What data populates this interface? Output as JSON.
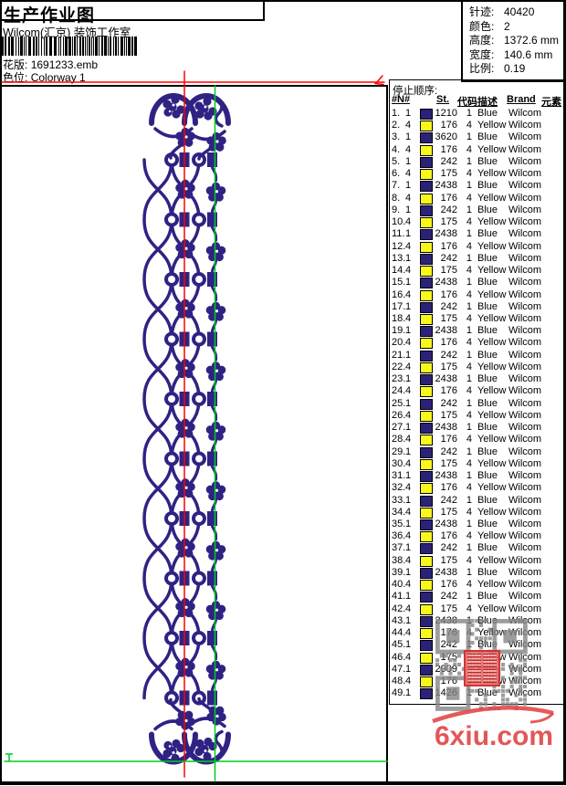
{
  "page": {
    "background": "#ffffff",
    "border_color": "#000000"
  },
  "header": {
    "title": "生产作业图",
    "company": "Wilcom(汇京) 装饰工作室",
    "pattern_label": "花版:",
    "pattern_value": "1691233.emb",
    "colorway_label": "色位:",
    "colorway_value": "Colorway 1"
  },
  "info": {
    "rows": [
      {
        "label": "针迹:",
        "value": "40420"
      },
      {
        "label": "颜色:",
        "value": "2"
      },
      {
        "label": "高度:",
        "value": "1372.6 mm"
      },
      {
        "label": "宽度:",
        "value": "140.6 mm"
      },
      {
        "label": "比例:",
        "value": "0.19"
      }
    ]
  },
  "stop_table": {
    "title": "停止顺序:",
    "columns": [
      "#",
      "N#",
      "St.",
      "代码",
      "描述",
      "Brand",
      "元素"
    ],
    "swatch_colors": {
      "blue": "#2b2277",
      "yellow": "#f7f71e"
    },
    "rows": [
      [
        "1.",
        "1",
        "blue",
        "1210",
        "1",
        "Blue",
        "Wilcom"
      ],
      [
        "2.",
        "4",
        "yellow",
        "176",
        "4",
        "Yellow",
        "Wilcom"
      ],
      [
        "3.",
        "1",
        "blue",
        "3620",
        "1",
        "Blue",
        "Wilcom"
      ],
      [
        "4.",
        "4",
        "yellow",
        "176",
        "4",
        "Yellow",
        "Wilcom"
      ],
      [
        "5.",
        "1",
        "blue",
        "242",
        "1",
        "Blue",
        "Wilcom"
      ],
      [
        "6.",
        "4",
        "yellow",
        "175",
        "4",
        "Yellow",
        "Wilcom"
      ],
      [
        "7.",
        "1",
        "blue",
        "2438",
        "1",
        "Blue",
        "Wilcom"
      ],
      [
        "8.",
        "4",
        "yellow",
        "176",
        "4",
        "Yellow",
        "Wilcom"
      ],
      [
        "9.",
        "1",
        "blue",
        "242",
        "1",
        "Blue",
        "Wilcom"
      ],
      [
        "10.",
        "4",
        "yellow",
        "175",
        "4",
        "Yellow",
        "Wilcom"
      ],
      [
        "11.",
        "1",
        "blue",
        "2438",
        "1",
        "Blue",
        "Wilcom"
      ],
      [
        "12.",
        "4",
        "yellow",
        "176",
        "4",
        "Yellow",
        "Wilcom"
      ],
      [
        "13.",
        "1",
        "blue",
        "242",
        "1",
        "Blue",
        "Wilcom"
      ],
      [
        "14.",
        "4",
        "yellow",
        "175",
        "4",
        "Yellow",
        "Wilcom"
      ],
      [
        "15.",
        "1",
        "blue",
        "2438",
        "1",
        "Blue",
        "Wilcom"
      ],
      [
        "16.",
        "4",
        "yellow",
        "176",
        "4",
        "Yellow",
        "Wilcom"
      ],
      [
        "17.",
        "1",
        "blue",
        "242",
        "1",
        "Blue",
        "Wilcom"
      ],
      [
        "18.",
        "4",
        "yellow",
        "175",
        "4",
        "Yellow",
        "Wilcom"
      ],
      [
        "19.",
        "1",
        "blue",
        "2438",
        "1",
        "Blue",
        "Wilcom"
      ],
      [
        "20.",
        "4",
        "yellow",
        "176",
        "4",
        "Yellow",
        "Wilcom"
      ],
      [
        "21.",
        "1",
        "blue",
        "242",
        "1",
        "Blue",
        "Wilcom"
      ],
      [
        "22.",
        "4",
        "yellow",
        "175",
        "4",
        "Yellow",
        "Wilcom"
      ],
      [
        "23.",
        "1",
        "blue",
        "2438",
        "1",
        "Blue",
        "Wilcom"
      ],
      [
        "24.",
        "4",
        "yellow",
        "176",
        "4",
        "Yellow",
        "Wilcom"
      ],
      [
        "25.",
        "1",
        "blue",
        "242",
        "1",
        "Blue",
        "Wilcom"
      ],
      [
        "26.",
        "4",
        "yellow",
        "175",
        "4",
        "Yellow",
        "Wilcom"
      ],
      [
        "27.",
        "1",
        "blue",
        "2438",
        "1",
        "Blue",
        "Wilcom"
      ],
      [
        "28.",
        "4",
        "yellow",
        "176",
        "4",
        "Yellow",
        "Wilcom"
      ],
      [
        "29.",
        "1",
        "blue",
        "242",
        "1",
        "Blue",
        "Wilcom"
      ],
      [
        "30.",
        "4",
        "yellow",
        "175",
        "4",
        "Yellow",
        "Wilcom"
      ],
      [
        "31.",
        "1",
        "blue",
        "2438",
        "1",
        "Blue",
        "Wilcom"
      ],
      [
        "32.",
        "4",
        "yellow",
        "176",
        "4",
        "Yellow",
        "Wilcom"
      ],
      [
        "33.",
        "1",
        "blue",
        "242",
        "1",
        "Blue",
        "Wilcom"
      ],
      [
        "34.",
        "4",
        "yellow",
        "175",
        "4",
        "Yellow",
        "Wilcom"
      ],
      [
        "35.",
        "1",
        "blue",
        "2438",
        "1",
        "Blue",
        "Wilcom"
      ],
      [
        "36.",
        "4",
        "yellow",
        "176",
        "4",
        "Yellow",
        "Wilcom"
      ],
      [
        "37.",
        "1",
        "blue",
        "242",
        "1",
        "Blue",
        "Wilcom"
      ],
      [
        "38.",
        "4",
        "yellow",
        "175",
        "4",
        "Yellow",
        "Wilcom"
      ],
      [
        "39.",
        "1",
        "blue",
        "2438",
        "1",
        "Blue",
        "Wilcom"
      ],
      [
        "40.",
        "4",
        "yellow",
        "176",
        "4",
        "Yellow",
        "Wilcom"
      ],
      [
        "41.",
        "1",
        "blue",
        "242",
        "1",
        "Blue",
        "Wilcom"
      ],
      [
        "42.",
        "4",
        "yellow",
        "175",
        "4",
        "Yellow",
        "Wilcom"
      ],
      [
        "43.",
        "1",
        "blue",
        "2438",
        "1",
        "Blue",
        "Wilcom"
      ],
      [
        "44.",
        "4",
        "yellow",
        "176",
        "4",
        "Yellow",
        "Wilcom"
      ],
      [
        "45.",
        "1",
        "blue",
        "242",
        "1",
        "Blue",
        "Wilcom"
      ],
      [
        "46.",
        "4",
        "yellow",
        "175",
        "4",
        "Yellow",
        "Wilcom"
      ],
      [
        "47.",
        "1",
        "blue",
        "2909",
        "1",
        "Blue",
        "Wilcom"
      ],
      [
        "48.",
        "4",
        "yellow",
        "176",
        "4",
        "Yellow",
        "Wilcom"
      ],
      [
        "49.",
        "1",
        "blue",
        "1426",
        "1",
        "Blue",
        "Wilcom"
      ]
    ]
  },
  "design": {
    "thread_blue": "#2e2383",
    "guide_red": "#ff0000",
    "guide_green": "#00cc22"
  },
  "overlay": {
    "qr_color": "#858585",
    "stamp_color": "#c83030"
  },
  "watermark": {
    "text": "6xiu.com",
    "color": "#e24848"
  }
}
